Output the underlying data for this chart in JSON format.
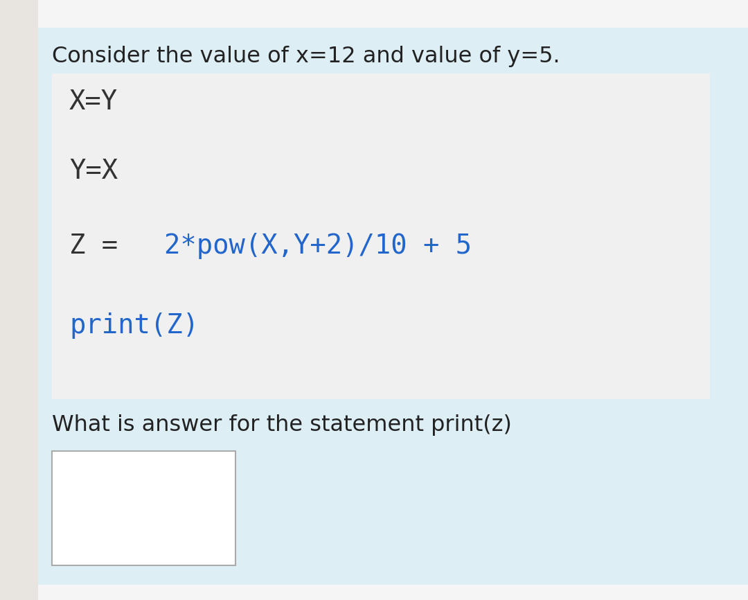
{
  "bg_left_strip": "#e8e4e0",
  "bg_top_strip": "#f5f5f5",
  "bg_main": "#ddeef5",
  "bg_code_box": "#f0f0f0",
  "bg_answer_box": "#ffffff",
  "answer_box_edge": "#aaaaaa",
  "title_text": "Consider the value of x=12 and value of y=5.",
  "title_color": "#222222",
  "title_fontsize": 23,
  "code_line0": "X=Y",
  "code_line1": "Y=X",
  "code_line2_black": "Z = ",
  "code_line2_blue": "2*pow(X,Y+2)/10 + 5",
  "code_line3": "print(Z)",
  "code_color_black": "#333333",
  "code_color_blue": "#2266cc",
  "code_fontsize": 28,
  "question_text": "What is answer for the statement print(z)",
  "question_color": "#222222",
  "question_fontsize": 23
}
